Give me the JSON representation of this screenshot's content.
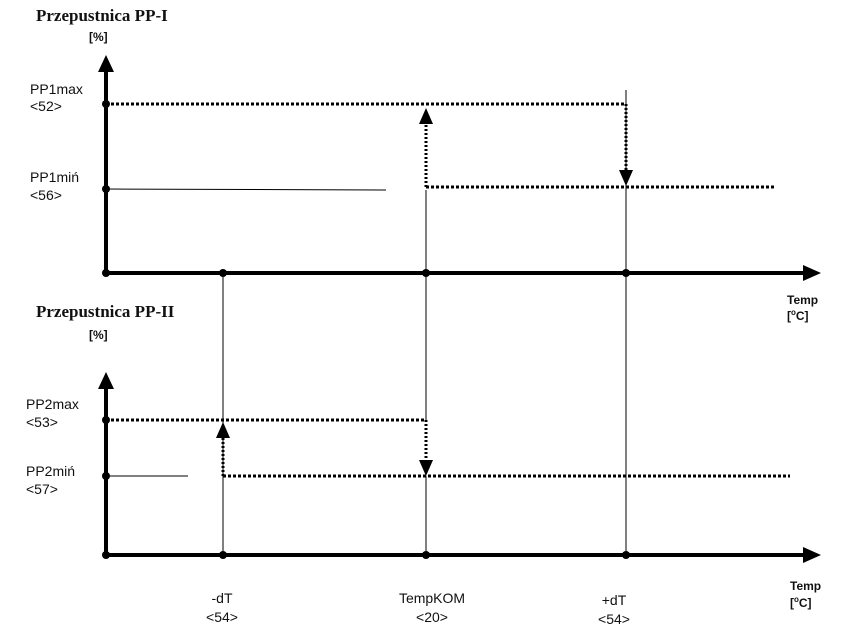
{
  "top_diagram": {
    "title": "Przepustnica PP-I",
    "y_unit": "[%]",
    "max_label": "PP1max",
    "max_param": "<52>",
    "min_label": "PP1miń",
    "min_param": "<56>",
    "x_label": "Temp",
    "x_unit_pre": "[",
    "x_unit_sup": "o",
    "x_unit_post": "C]"
  },
  "bottom_diagram": {
    "title": "Przepustnica PP-II",
    "y_unit": "[%]",
    "max_label": "PP2max",
    "max_param": "<53>",
    "min_label": "PP2miń",
    "min_param": "<57>",
    "x_label": "Temp",
    "x_unit_pre": "[",
    "x_unit_sup": "o",
    "x_unit_post": "C]"
  },
  "x_ticks": [
    {
      "label": "-dT",
      "param": "<54>"
    },
    {
      "label": "TempKOM",
      "param": "<20>"
    },
    {
      "label": "+dT",
      "param": "<54>"
    }
  ]
}
